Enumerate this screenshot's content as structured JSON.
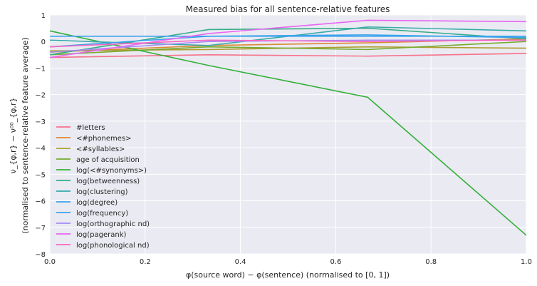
{
  "chart_data": {
    "type": "line",
    "title": "Measured bias for all sentence-relative features",
    "xlabel": "φ(source word) − φ(sentence) (normalised to [0, 1])",
    "ylabel_line1": "ν_{φ,r} − ν⁰⁰_{φ,r}",
    "ylabel_line2": "(normalised to sentence-relative feature average)",
    "xlim": [
      0,
      1
    ],
    "ylim": [
      -8,
      1
    ],
    "xticks": [
      "0.0",
      "0.2",
      "0.4",
      "0.6",
      "0.8",
      "1.0"
    ],
    "xtick_values": [
      0,
      0.2,
      0.4,
      0.6,
      0.8,
      1.0
    ],
    "yticks": [
      "1",
      "0",
      "−1",
      "−2",
      "−3",
      "−4",
      "−5",
      "−6",
      "−7",
      "−8"
    ],
    "ytick_values": [
      1,
      0,
      -1,
      -2,
      -3,
      -4,
      -5,
      -6,
      -7,
      -8
    ],
    "grid": true,
    "legend_position": "lower-left",
    "x": [
      0,
      0.333,
      0.667,
      1.0
    ],
    "series": [
      {
        "name": "#letters",
        "color": "#f77189",
        "values": [
          -0.6,
          -0.5,
          -0.55,
          -0.45
        ]
      },
      {
        "name": "<#phonemes>",
        "color": "#dc8932",
        "values": [
          -0.4,
          -0.15,
          -0.05,
          0.1
        ]
      },
      {
        "name": "<#syllables>",
        "color": "#ae9d31",
        "values": [
          -0.35,
          -0.3,
          -0.2,
          -0.25
        ]
      },
      {
        "name": "age of acquisition",
        "color": "#77ab31",
        "values": [
          -0.5,
          -0.2,
          -0.3,
          0.0
        ]
      },
      {
        "name": "log(<#synonyms>)",
        "color": "#33b039",
        "values": [
          0.4,
          -0.9,
          -2.1,
          -7.3
        ]
      },
      {
        "name": "log(betweenness)",
        "color": "#36ad8a",
        "values": [
          -0.5,
          0.45,
          0.5,
          0.1
        ]
      },
      {
        "name": "log(clustering)",
        "color": "#38aaac",
        "values": [
          0.05,
          -0.15,
          0.55,
          0.4
        ]
      },
      {
        "name": "log(degree)",
        "color": "#3ba3ec",
        "values": [
          -0.2,
          0.2,
          0.25,
          0.15
        ]
      },
      {
        "name": "log(frequency)",
        "color": "#3ba3ec",
        "values": [
          0.2,
          0.2,
          0.2,
          0.2
        ]
      },
      {
        "name": "log(orthographic nd)",
        "color": "#a48cf4",
        "values": [
          -0.4,
          0.0,
          0.05,
          0.05
        ]
      },
      {
        "name": "log(pagerank)",
        "color": "#e866f4",
        "values": [
          -0.6,
          0.3,
          0.8,
          0.75
        ]
      },
      {
        "name": "log(phonological nd)",
        "color": "#f668c2",
        "values": [
          -0.2,
          0.05,
          0.0,
          0.05
        ]
      }
    ]
  }
}
